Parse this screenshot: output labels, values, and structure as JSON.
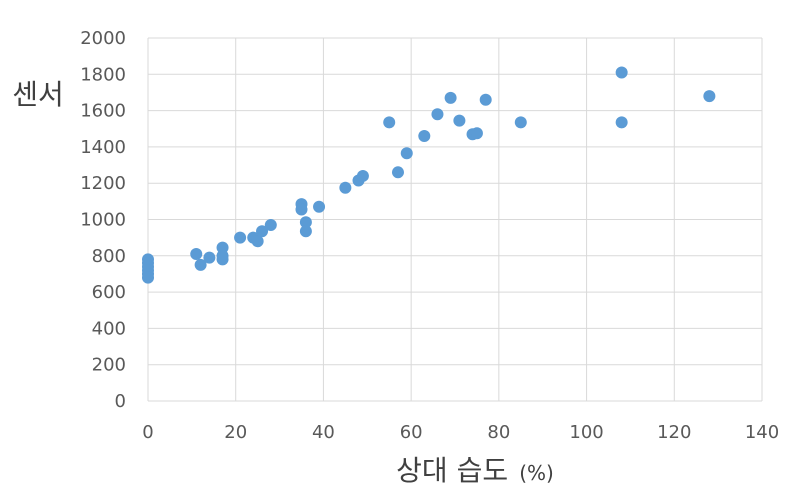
{
  "chart_data": {
    "type": "scatter",
    "title": "",
    "xlabel": "상대 습도",
    "xlabel_unit": "(%)",
    "ylabel": "센서",
    "xlim": [
      0,
      140
    ],
    "ylim": [
      0,
      2000
    ],
    "x_ticks": [
      "0",
      "20",
      "40",
      "60",
      "80",
      "100",
      "120",
      "140"
    ],
    "y_ticks": [
      "0",
      "200",
      "400",
      "600",
      "800",
      "1000",
      "1200",
      "1400",
      "1600",
      "1800",
      "2000"
    ],
    "grid": true,
    "legend": "none",
    "marker_color": "#5b9bd5",
    "grid_color": "#d9d9d9",
    "points": [
      {
        "x": 0,
        "y": 780
      },
      {
        "x": 0,
        "y": 760
      },
      {
        "x": 0,
        "y": 740
      },
      {
        "x": 0,
        "y": 720
      },
      {
        "x": 0,
        "y": 700
      },
      {
        "x": 0,
        "y": 680
      },
      {
        "x": 11,
        "y": 810
      },
      {
        "x": 12,
        "y": 750
      },
      {
        "x": 14,
        "y": 790
      },
      {
        "x": 17,
        "y": 845
      },
      {
        "x": 17,
        "y": 800
      },
      {
        "x": 17,
        "y": 780
      },
      {
        "x": 21,
        "y": 900
      },
      {
        "x": 24,
        "y": 900
      },
      {
        "x": 25,
        "y": 880
      },
      {
        "x": 26,
        "y": 935
      },
      {
        "x": 28,
        "y": 970
      },
      {
        "x": 35,
        "y": 1085
      },
      {
        "x": 35,
        "y": 1055
      },
      {
        "x": 36,
        "y": 985
      },
      {
        "x": 36,
        "y": 935
      },
      {
        "x": 39,
        "y": 1070
      },
      {
        "x": 45,
        "y": 1175
      },
      {
        "x": 48,
        "y": 1215
      },
      {
        "x": 49,
        "y": 1240
      },
      {
        "x": 55,
        "y": 1535
      },
      {
        "x": 57,
        "y": 1260
      },
      {
        "x": 59,
        "y": 1365
      },
      {
        "x": 63,
        "y": 1460
      },
      {
        "x": 66,
        "y": 1580
      },
      {
        "x": 69,
        "y": 1670
      },
      {
        "x": 71,
        "y": 1545
      },
      {
        "x": 74,
        "y": 1470
      },
      {
        "x": 75,
        "y": 1475
      },
      {
        "x": 77,
        "y": 1660
      },
      {
        "x": 85,
        "y": 1535
      },
      {
        "x": 108,
        "y": 1810
      },
      {
        "x": 108,
        "y": 1535
      },
      {
        "x": 128,
        "y": 1680
      }
    ]
  }
}
